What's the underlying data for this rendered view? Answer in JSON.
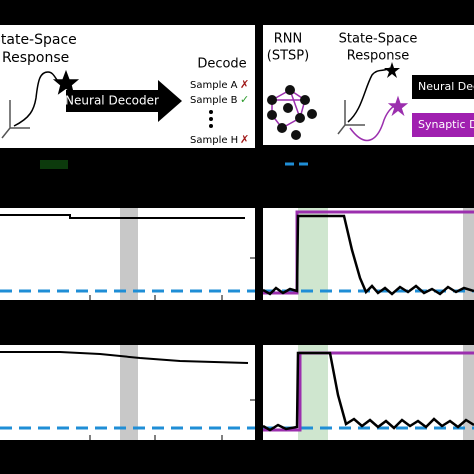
{
  "left_panel": {
    "title_line1": "State-Space",
    "title_line2": "Response",
    "arrow_label": "Neural Decoder",
    "decode_title": "Decode",
    "samples": [
      {
        "label": "Sample A",
        "mark": "✗"
      },
      {
        "label": "Sample B",
        "mark": "✓"
      },
      {
        "label": "Sample H",
        "mark": "✗"
      }
    ]
  },
  "right_panel": {
    "rnn_line1": "RNN",
    "rnn_line2": "(STSP)",
    "title_line1": "State-Space",
    "title_line2": "Response",
    "legend": [
      "Neural Decoder",
      "Synaptic Decoder"
    ]
  }
}
